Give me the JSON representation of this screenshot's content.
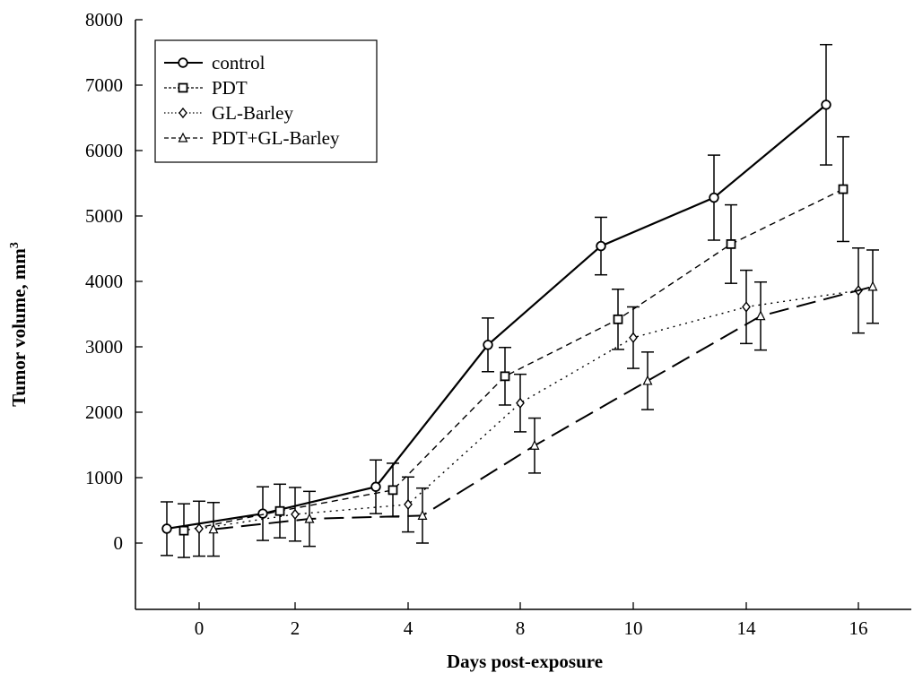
{
  "chart_data": {
    "type": "line",
    "xlabel": "Days post-exposure",
    "ylabel": "Tumor volume, mm",
    "ylabel_sup": "3",
    "categories": [
      "0",
      "2",
      "4",
      "8",
      "10",
      "14",
      "16"
    ],
    "ylim": [
      -1000,
      8000
    ],
    "yticks": [
      "0",
      "1000",
      "2000",
      "3000",
      "4000",
      "5000",
      "6000",
      "7000",
      "8000"
    ],
    "grid": false,
    "legend_position": "top-left",
    "series": [
      {
        "name": "control",
        "marker": "circle",
        "line_style": "solid",
        "values": [
          220,
          450,
          860,
          3030,
          4540,
          5280,
          6700
        ],
        "errors": [
          410,
          410,
          410,
          410,
          440,
          650,
          920
        ]
      },
      {
        "name": "PDT",
        "marker": "square",
        "line_style": "dashed",
        "values": [
          190,
          490,
          810,
          2550,
          3420,
          4570,
          5410
        ],
        "errors": [
          410,
          410,
          410,
          440,
          460,
          600,
          800
        ]
      },
      {
        "name": "GL-Barley",
        "marker": "diamond",
        "line_style": "dotted",
        "values": [
          220,
          440,
          590,
          2140,
          3140,
          3610,
          3860
        ],
        "errors": [
          420,
          410,
          420,
          440,
          470,
          560,
          650
        ]
      },
      {
        "name": "PDT+GL-Barley",
        "marker": "triangle",
        "line_style": "long-dash",
        "values": [
          210,
          370,
          420,
          1490,
          2480,
          3470,
          3920
        ],
        "errors": [
          410,
          420,
          420,
          420,
          440,
          520,
          560
        ]
      }
    ]
  }
}
